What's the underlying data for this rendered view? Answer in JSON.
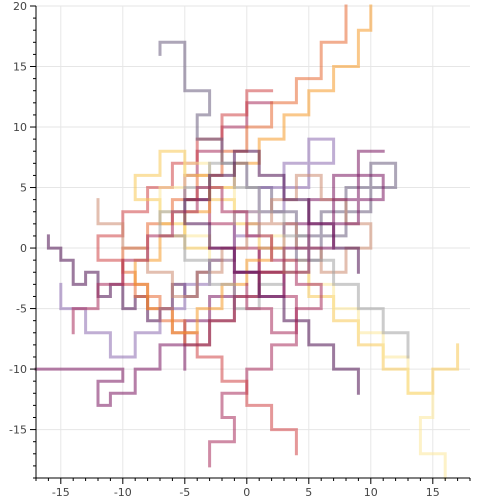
{
  "chart_data": {
    "type": "line",
    "title": "",
    "xlabel": "",
    "ylabel": "",
    "xlim": [
      -17,
      18
    ],
    "ylim": [
      -19,
      20
    ],
    "x_ticks": [
      -15,
      -10,
      -5,
      0,
      5,
      10,
      15
    ],
    "y_ticks": [
      -15,
      -10,
      -5,
      0,
      5,
      10,
      15,
      20
    ],
    "x_tick_labels": [
      "-15",
      "-10",
      "-5",
      "0",
      "5",
      "10",
      "15"
    ],
    "y_tick_labels": [
      "-15",
      "-10",
      "-5",
      "0",
      "5",
      "10",
      "15",
      "20"
    ],
    "grid": true,
    "legend": "none",
    "line_alpha": 0.55,
    "colors": [
      "#4b0c4f",
      "#7a1660",
      "#a82c5b",
      "#cf4446",
      "#e86a33",
      "#f59b2a",
      "#f8c856",
      "#fbe89a",
      "#6a5d7e",
      "#8c6bb1",
      "#cc8b6f",
      "#a3a3a3"
    ],
    "series": [
      {
        "x": [
          -16,
          -16,
          -15,
          -15,
          -14,
          -14,
          -13,
          -13,
          -12,
          -12,
          -11,
          -11,
          -10,
          -10,
          -9,
          -9,
          -8,
          -8,
          -7,
          -7,
          -6,
          -6,
          -5,
          -5,
          -4,
          -4,
          -3,
          -3,
          -2
        ],
        "y": [
          1,
          0,
          0,
          -1,
          -1,
          -3,
          -3,
          -2,
          -2,
          -4,
          -4,
          -3,
          -3,
          -5,
          -5,
          -4,
          -4,
          -6,
          -6,
          -5,
          -5,
          -3,
          -3,
          -4,
          -4,
          -2,
          -2,
          -1,
          -1
        ]
      },
      {
        "x": [
          -17,
          -10,
          -10,
          -12,
          -12,
          -11,
          -11,
          -9,
          -9,
          -7,
          -7,
          -5,
          -5,
          -3,
          -3,
          -1,
          -1,
          1,
          1,
          3,
          3,
          5,
          5,
          7,
          7,
          9,
          9,
          11
        ],
        "y": [
          -10,
          -10,
          -11,
          -11,
          -13,
          -13,
          -12,
          -12,
          -10,
          -10,
          -8,
          -8,
          -6,
          -6,
          -4,
          -4,
          -2,
          -2,
          0,
          0,
          2,
          2,
          4,
          4,
          6,
          6,
          8,
          8
        ]
      },
      {
        "x": [
          -3,
          -3,
          -1,
          -1,
          -2,
          -2,
          0,
          0,
          2,
          2,
          4,
          4,
          4,
          3,
          3,
          1,
          1,
          -1,
          -1,
          -3,
          -3,
          -5,
          -5,
          -4,
          -4,
          -2,
          -2,
          0,
          0,
          2
        ],
        "y": [
          -18,
          -16,
          -16,
          -14,
          -14,
          -12,
          -12,
          -10,
          -10,
          -8,
          -8,
          -6,
          -4,
          -4,
          -2,
          -2,
          0,
          0,
          2,
          2,
          4,
          4,
          6,
          6,
          8,
          8,
          10,
          10,
          12,
          12
        ]
      },
      {
        "x": [
          4,
          4,
          2,
          2,
          0,
          0,
          -2,
          -2,
          -4,
          -4,
          -6,
          -6,
          -8,
          -8,
          -10,
          -10,
          -12,
          -12,
          -10,
          -10,
          -8,
          -8,
          -6,
          -6,
          -4,
          -4,
          -2,
          -2,
          0,
          0,
          2
        ],
        "y": [
          -17,
          -15,
          -15,
          -13,
          -13,
          -11,
          -11,
          -9,
          -9,
          -7,
          -7,
          -5,
          -5,
          -3,
          -3,
          -1,
          -1,
          1,
          1,
          3,
          3,
          5,
          5,
          7,
          7,
          9,
          9,
          11,
          11,
          13,
          13
        ]
      },
      {
        "x": [
          8,
          8,
          6,
          6,
          4,
          4,
          2,
          2,
          0,
          0,
          -2,
          -2,
          -4,
          -4,
          -6,
          -6,
          -8,
          -8,
          -10,
          -10,
          -9,
          -9,
          -7,
          -7,
          -5,
          -5,
          -3,
          -3,
          -1,
          -1,
          1,
          1,
          3
        ],
        "y": [
          20,
          17,
          17,
          14,
          14,
          12,
          12,
          10,
          10,
          8,
          8,
          6,
          6,
          4,
          4,
          2,
          2,
          0,
          0,
          -2,
          -2,
          -4,
          -4,
          -6,
          -6,
          -8,
          -8,
          -6,
          -6,
          -4,
          -4,
          -2,
          -2
        ]
      },
      {
        "x": [
          10,
          10,
          9,
          9,
          7,
          7,
          5,
          5,
          3,
          3,
          1,
          1,
          -1,
          -1,
          -3,
          -3,
          -5,
          -5,
          -7,
          -7,
          -9,
          -9,
          -8,
          -8,
          -6,
          -6,
          -4,
          -4,
          -2,
          -2,
          0,
          0,
          2,
          2
        ],
        "y": [
          20,
          18,
          18,
          15,
          15,
          13,
          13,
          11,
          11,
          9,
          9,
          7,
          7,
          5,
          5,
          3,
          3,
          1,
          1,
          -1,
          -1,
          -3,
          -3,
          -5,
          -5,
          -7,
          -7,
          -5,
          -5,
          -3,
          -3,
          -1,
          -1,
          1
        ]
      },
      {
        "x": [
          17,
          17,
          15,
          15,
          13,
          13,
          11,
          11,
          9,
          9,
          7,
          7,
          5,
          5,
          3,
          3,
          1,
          1,
          -1,
          -1,
          -3,
          -3,
          -5,
          -5,
          -7,
          -7,
          -9,
          -9,
          -7,
          -7,
          -5,
          -5,
          -3
        ],
        "y": [
          -8,
          -10,
          -10,
          -12,
          -12,
          -10,
          -10,
          -8,
          -8,
          -6,
          -6,
          -4,
          -4,
          -2,
          -2,
          0,
          0,
          2,
          2,
          4,
          4,
          6,
          6,
          8,
          8,
          6,
          6,
          4,
          4,
          2,
          2,
          0,
          0
        ]
      },
      {
        "x": [
          16,
          16,
          14,
          14,
          15,
          15,
          13,
          13,
          11,
          11,
          9,
          9,
          7,
          7,
          5,
          5,
          3,
          3,
          1,
          1,
          -1,
          -1,
          -3,
          -3,
          -5,
          -5,
          -7,
          -7,
          -5,
          -5,
          -3,
          -3,
          -1
        ],
        "y": [
          -19,
          -17,
          -17,
          -14,
          -14,
          -12,
          -12,
          -9,
          -9,
          -7,
          -7,
          -5,
          -5,
          -3,
          -3,
          -1,
          -1,
          1,
          1,
          3,
          3,
          5,
          5,
          7,
          7,
          5,
          5,
          3,
          3,
          1,
          1,
          -1,
          -1
        ]
      },
      {
        "x": [
          -7,
          -7,
          -5,
          -5,
          -3,
          -3,
          -4,
          -4,
          -2,
          -2,
          0,
          0,
          2,
          2,
          4,
          4,
          6,
          6,
          8,
          8,
          10,
          10,
          12,
          12,
          10,
          10,
          8,
          8,
          6,
          6,
          4,
          4
        ],
        "y": [
          16,
          17,
          17,
          13,
          13,
          11,
          11,
          9,
          9,
          7,
          7,
          5,
          5,
          3,
          3,
          1,
          1,
          3,
          3,
          5,
          5,
          7,
          7,
          5,
          5,
          3,
          3,
          1,
          1,
          -1,
          -1,
          1
        ]
      },
      {
        "x": [
          -15,
          -15,
          -13,
          -13,
          -11,
          -11,
          -9,
          -9,
          -7,
          -7,
          -5,
          -5,
          -3,
          -3,
          -1,
          -1,
          1,
          1,
          3,
          3,
          5,
          5,
          7,
          7,
          5,
          5,
          3,
          3,
          1,
          1,
          -1,
          -1
        ],
        "y": [
          -3,
          -5,
          -5,
          -7,
          -7,
          -9,
          -9,
          -7,
          -7,
          -5,
          -5,
          -3,
          -3,
          -1,
          -1,
          1,
          1,
          3,
          3,
          5,
          5,
          7,
          7,
          9,
          9,
          7,
          7,
          5,
          5,
          3,
          3,
          1
        ]
      },
      {
        "x": [
          -12,
          -12,
          -10,
          -10,
          -8,
          -8,
          -6,
          -6,
          -4,
          -4,
          -2,
          -2,
          0,
          0,
          2,
          2,
          4,
          4,
          6,
          6,
          8,
          8,
          10,
          10,
          8,
          8,
          6,
          6,
          4,
          4,
          2,
          2
        ],
        "y": [
          4,
          2,
          2,
          0,
          0,
          -2,
          -2,
          -4,
          -4,
          -2,
          -2,
          0,
          0,
          2,
          2,
          4,
          4,
          6,
          6,
          4,
          4,
          2,
          2,
          0,
          0,
          -2,
          -2,
          0,
          0,
          2,
          2,
          4
        ]
      },
      {
        "x": [
          13,
          13,
          11,
          11,
          9,
          9,
          7,
          7,
          5,
          5,
          3,
          3,
          1,
          1,
          -1,
          -1,
          -3,
          -3,
          -5,
          -5,
          -7,
          -7,
          -5,
          -5,
          -3,
          -3,
          -1,
          -1,
          1,
          1,
          3
        ],
        "y": [
          -9,
          -7,
          -7,
          -5,
          -5,
          -3,
          -3,
          -1,
          -1,
          1,
          1,
          3,
          3,
          5,
          5,
          7,
          7,
          5,
          5,
          3,
          3,
          1,
          1,
          -1,
          -1,
          -3,
          -3,
          -5,
          -5,
          -3,
          -3
        ]
      },
      {
        "x": [
          9,
          9,
          7,
          7,
          5,
          5,
          3,
          3,
          1,
          1,
          -1,
          -1,
          -3,
          -3,
          -5,
          -5,
          -3,
          -3,
          -1,
          -1,
          1,
          1,
          3,
          3,
          5,
          5,
          7,
          7,
          9,
          9
        ],
        "y": [
          -12,
          -10,
          -10,
          -8,
          -8,
          -6,
          -6,
          -4,
          -4,
          -2,
          -2,
          0,
          0,
          2,
          2,
          4,
          4,
          6,
          6,
          8,
          8,
          6,
          6,
          4,
          4,
          2,
          2,
          0,
          0,
          -2
        ]
      },
      {
        "x": [
          -5,
          -5,
          -3,
          -3,
          -1,
          -1,
          1,
          1,
          3,
          3,
          5,
          5,
          7,
          7,
          9,
          9,
          11,
          11,
          9,
          9,
          7,
          7,
          5,
          5,
          3,
          3,
          1,
          1,
          -1,
          -1,
          -3
        ],
        "y": [
          -10,
          -8,
          -8,
          -6,
          -6,
          -4,
          -4,
          -2,
          -2,
          0,
          0,
          2,
          2,
          4,
          4,
          6,
          6,
          4,
          4,
          2,
          2,
          0,
          0,
          -2,
          -2,
          -4,
          -4,
          -2,
          -2,
          0,
          0
        ]
      },
      {
        "x": [
          -14,
          -14,
          -12,
          -12,
          -10,
          -10,
          -8,
          -8,
          -6,
          -6,
          -4,
          -4,
          -2,
          -2,
          0,
          0,
          2,
          2,
          4,
          4,
          6,
          6,
          4,
          4,
          2,
          2,
          0,
          0
        ],
        "y": [
          -7,
          -5,
          -5,
          -3,
          -3,
          -1,
          -1,
          1,
          1,
          3,
          3,
          5,
          5,
          3,
          3,
          1,
          1,
          -1,
          -1,
          -3,
          -3,
          -5,
          -5,
          -7,
          -7,
          -5,
          -5,
          -3
        ]
      }
    ]
  }
}
